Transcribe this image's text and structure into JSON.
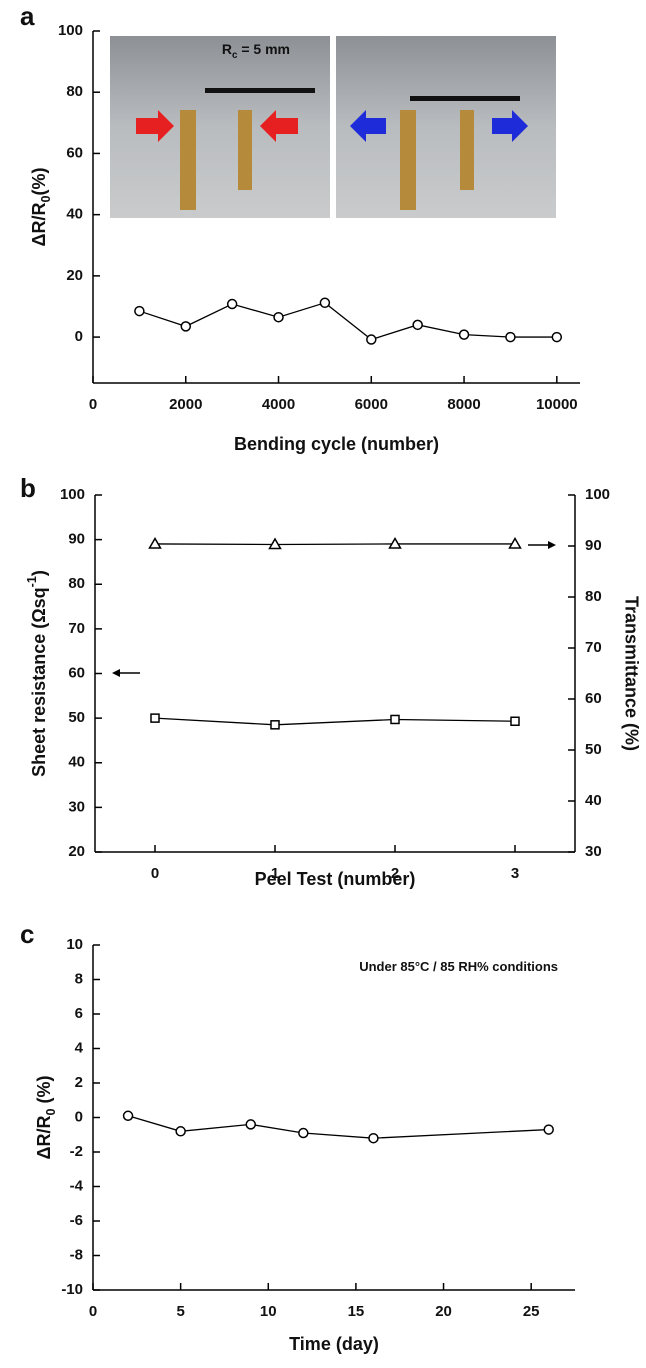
{
  "chart_data": [
    {
      "type": "line",
      "panel": "a",
      "xlabel": "Bending cycle (number)",
      "ylabel": {
        "text": "ΔR/R",
        "sub": "0",
        "tail": "(%)"
      },
      "annotation": {
        "text": "R",
        "sub": "c",
        "tail": " = 5 mm"
      },
      "x": [
        1000,
        2000,
        3000,
        4000,
        5000,
        6000,
        7000,
        8000,
        9000,
        10000
      ],
      "series": [
        {
          "color": "#000000",
          "marker": "circle",
          "values": [
            8.5,
            3.5,
            10.8,
            6.5,
            11.2,
            -0.8,
            4,
            0.8,
            0,
            0
          ]
        }
      ],
      "xlim": [
        0,
        10500
      ],
      "xticks": [
        0,
        2000,
        4000,
        6000,
        8000,
        10000
      ],
      "ylim": [
        -15,
        100
      ],
      "yticks": [
        0,
        20,
        40,
        60,
        80,
        100
      ]
    },
    {
      "type": "line",
      "panel": "b",
      "xlabel": "Peel Test (number)",
      "ylabel": {
        "text": "Sheet resistance (Ωsq",
        "sup": "-1",
        "tail": ")"
      },
      "y2label": "Transmittance (%)",
      "x": [
        0,
        1,
        2,
        3
      ],
      "series": [
        {
          "color": "#000000",
          "marker": "square",
          "values": [
            50,
            48.5,
            49.7,
            49.3
          ]
        },
        {
          "color": "#000000",
          "marker": "triangle",
          "axis": "y2",
          "values": [
            90.4,
            90.3,
            90.4,
            90.4
          ]
        }
      ],
      "xlim": [
        -0.5,
        3.5
      ],
      "xticks": [
        0,
        1,
        2,
        3
      ],
      "ylim": [
        20,
        100
      ],
      "yticks": [
        20,
        30,
        40,
        50,
        60,
        70,
        80,
        90,
        100
      ],
      "y2lim": [
        30,
        100
      ],
      "y2ticks": [
        30,
        40,
        50,
        60,
        70,
        80,
        90,
        100
      ]
    },
    {
      "type": "line",
      "panel": "c",
      "xlabel": "Time (day)",
      "ylabel": {
        "text": "ΔR/R",
        "sub": "0",
        "tail": " (%)"
      },
      "annotation": {
        "text": "Under 85°C / 85 RH% conditions"
      },
      "x": [
        2,
        5,
        9,
        12,
        16,
        26
      ],
      "series": [
        {
          "color": "#000000",
          "marker": "circle",
          "values": [
            0.1,
            -0.8,
            -0.4,
            -0.9,
            -1.2,
            -0.7
          ]
        }
      ],
      "xlim": [
        0,
        27.5
      ],
      "xticks": [
        0,
        5,
        10,
        15,
        20,
        25
      ],
      "ylim": [
        -10,
        10
      ],
      "yticks": [
        -10,
        -8,
        -6,
        -4,
        -2,
        0,
        2,
        4,
        6,
        8,
        10
      ]
    }
  ]
}
